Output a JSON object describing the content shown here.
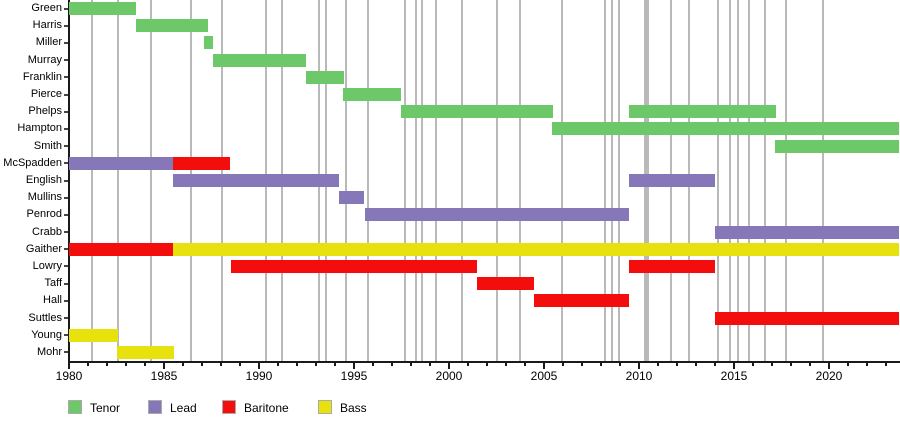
{
  "chart_data": {
    "type": "gantt-timeline",
    "title": "",
    "x_axis": {
      "min": 1980,
      "max": 2023.7,
      "major_ticks": [
        1980,
        1985,
        1990,
        1995,
        2000,
        2005,
        2010,
        2015,
        2020
      ],
      "minor_tick_increment": 1,
      "minor_tick_start": 1981,
      "minor_tick_end": 2023
    },
    "roles": [
      {
        "id": "tenor",
        "label": "Tenor",
        "color": "#6cc868"
      },
      {
        "id": "lead",
        "label": "Lead",
        "color": "#8577b8"
      },
      {
        "id": "baritone",
        "label": "Baritone",
        "color": "#f30d0d"
      },
      {
        "id": "bass",
        "label": "Bass",
        "color": "#e7e20e"
      }
    ],
    "rows": [
      {
        "label": "Green",
        "segments": [
          {
            "role": "tenor",
            "start": 1980.0,
            "end": 1983.55
          }
        ]
      },
      {
        "label": "Harris",
        "segments": [
          {
            "role": "tenor",
            "start": 1983.5,
            "end": 1987.3
          }
        ]
      },
      {
        "label": "Miller",
        "segments": [
          {
            "role": "tenor",
            "start": 1987.1,
            "end": 1987.6
          }
        ]
      },
      {
        "label": "Murray",
        "segments": [
          {
            "role": "tenor",
            "start": 1987.6,
            "end": 1992.5
          }
        ]
      },
      {
        "label": "Franklin",
        "segments": [
          {
            "role": "tenor",
            "start": 1992.45,
            "end": 1994.5
          }
        ]
      },
      {
        "label": "Pierce",
        "segments": [
          {
            "role": "tenor",
            "start": 1994.4,
            "end": 1997.45
          }
        ]
      },
      {
        "label": "Phelps",
        "segments": [
          {
            "role": "tenor",
            "start": 1997.45,
            "end": 2005.45
          },
          {
            "role": "tenor",
            "start": 2009.45,
            "end": 2017.2
          }
        ]
      },
      {
        "label": "Hampton",
        "segments": [
          {
            "role": "tenor",
            "start": 2005.4,
            "end": 2023.7
          }
        ]
      },
      {
        "label": "Smith",
        "segments": [
          {
            "role": "tenor",
            "start": 2017.15,
            "end": 2023.7
          }
        ]
      },
      {
        "label": "McSpadden",
        "segments": [
          {
            "role": "lead",
            "start": 1980.0,
            "end": 1985.45
          },
          {
            "role": "baritone",
            "start": 1985.45,
            "end": 1988.5
          }
        ]
      },
      {
        "label": "English",
        "segments": [
          {
            "role": "lead",
            "start": 1985.45,
            "end": 1994.2
          },
          {
            "role": "lead",
            "start": 2009.45,
            "end": 2014.0
          }
        ]
      },
      {
        "label": "Mullins",
        "segments": [
          {
            "role": "lead",
            "start": 1994.2,
            "end": 1995.55
          }
        ]
      },
      {
        "label": "Penrod",
        "segments": [
          {
            "role": "lead",
            "start": 1995.6,
            "end": 2009.45
          }
        ]
      },
      {
        "label": "Crabb",
        "segments": [
          {
            "role": "lead",
            "start": 2014.0,
            "end": 2023.7
          }
        ]
      },
      {
        "label": "Gaither",
        "segments": [
          {
            "role": "baritone",
            "start": 1980.0,
            "end": 1985.45
          },
          {
            "role": "bass",
            "start": 1985.45,
            "end": 2023.7
          }
        ]
      },
      {
        "label": "Lowry",
        "segments": [
          {
            "role": "baritone",
            "start": 1988.5,
            "end": 2001.45
          },
          {
            "role": "baritone",
            "start": 2009.45,
            "end": 2014.0
          }
        ]
      },
      {
        "label": "Taff",
        "segments": [
          {
            "role": "baritone",
            "start": 2001.45,
            "end": 2004.5
          }
        ]
      },
      {
        "label": "Hall",
        "segments": [
          {
            "role": "baritone",
            "start": 2004.45,
            "end": 2009.45
          }
        ]
      },
      {
        "label": "Suttles",
        "segments": [
          {
            "role": "baritone",
            "start": 2014.0,
            "end": 2023.7
          }
        ]
      },
      {
        "label": "Young",
        "segments": [
          {
            "role": "bass",
            "start": 1980.0,
            "end": 1982.6
          }
        ]
      },
      {
        "label": "Mohr",
        "segments": [
          {
            "role": "bass",
            "start": 1982.5,
            "end": 1985.5
          }
        ]
      }
    ],
    "event_gridlines": [
      {
        "year": 1981.21
      },
      {
        "year": 1982.58
      },
      {
        "year": 1984.32
      },
      {
        "year": 1986.42
      },
      {
        "year": 1988.05
      },
      {
        "year": 1990.37
      },
      {
        "year": 1991.21
      },
      {
        "year": 1993.16
      },
      {
        "year": 1993.53
      },
      {
        "year": 1994.58
      },
      {
        "year": 1995.74
      },
      {
        "year": 1997.68
      },
      {
        "year": 1998.26
      },
      {
        "year": 1998.58
      },
      {
        "year": 1999.32
      },
      {
        "year": 2000.68
      },
      {
        "year": 2002.53
      },
      {
        "year": 2003.74
      },
      {
        "year": 2005.95
      },
      {
        "year": 2008.21
      },
      {
        "year": 2008.58
      },
      {
        "year": 2008.95
      },
      {
        "year": 2010.42,
        "thick": true
      },
      {
        "year": 2011.68
      },
      {
        "year": 2012.63
      },
      {
        "year": 2014.16
      },
      {
        "year": 2014.79
      },
      {
        "year": 2015.21
      },
      {
        "year": 2015.79
      },
      {
        "year": 2016.63
      },
      {
        "year": 2017.74
      },
      {
        "year": 2019.68
      }
    ],
    "legend_position": "bottom"
  },
  "layout_colors": {
    "background": "#ffffff",
    "gridline": "#b9b9b9",
    "axis": "#1a1a1a",
    "text": "#000000"
  },
  "legend": {
    "item_x": [
      68,
      148,
      222,
      318
    ]
  }
}
